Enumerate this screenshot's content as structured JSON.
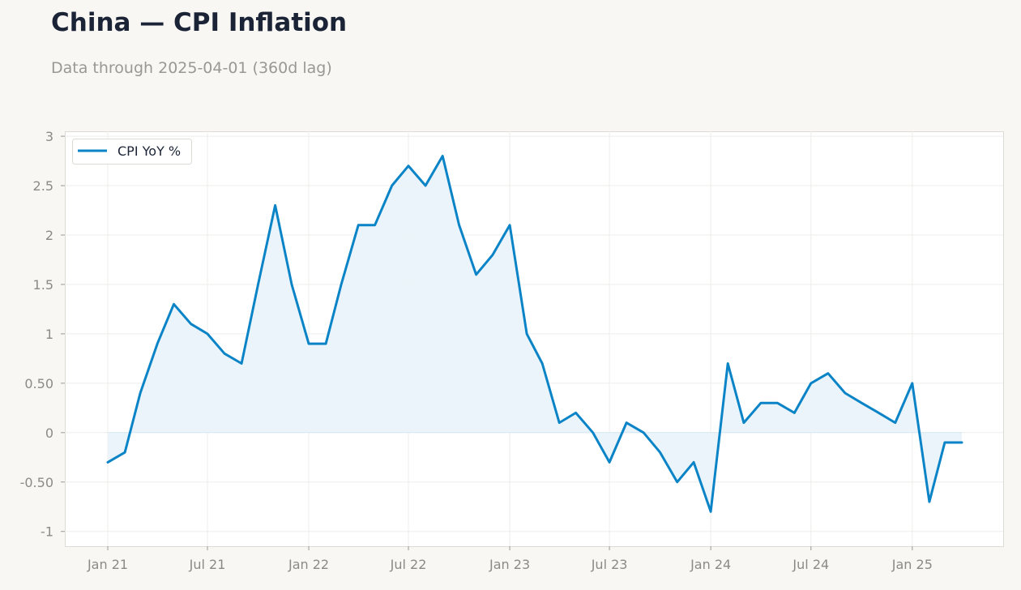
{
  "title": "China — CPI Inflation",
  "subtitle": "Data through 2025-04-01 (360d lag)",
  "colors": {
    "line": "#0a84c6",
    "fill": "#e9f3fa",
    "grid": "#ededeb",
    "frame": "#dddbd6",
    "background": "#ffffff"
  },
  "chart_data": {
    "type": "area",
    "legend": {
      "position": "top-left"
    },
    "grid": true,
    "xlim": [
      "2021-01-01",
      "2025-04-01"
    ],
    "ylim": [
      -1.15,
      3.05
    ],
    "x_ticks": [
      {
        "date": "2021-01-01",
        "label": "Jan 21"
      },
      {
        "date": "2021-07-01",
        "label": "Jul 21"
      },
      {
        "date": "2022-01-01",
        "label": "Jan 22"
      },
      {
        "date": "2022-07-01",
        "label": "Jul 22"
      },
      {
        "date": "2023-01-01",
        "label": "Jan 23"
      },
      {
        "date": "2023-07-01",
        "label": "Jul 23"
      },
      {
        "date": "2024-01-01",
        "label": "Jan 24"
      },
      {
        "date": "2024-07-01",
        "label": "Jul 24"
      },
      {
        "date": "2025-01-01",
        "label": "Jan 25"
      }
    ],
    "y_ticks": [
      {
        "value": 3,
        "label": "3"
      },
      {
        "value": 2.5,
        "label": "2.5"
      },
      {
        "value": 2,
        "label": "2"
      },
      {
        "value": 1.5,
        "label": "1.5"
      },
      {
        "value": 1,
        "label": "1"
      },
      {
        "value": 0.5,
        "label": "0.50"
      },
      {
        "value": 0,
        "label": "0"
      },
      {
        "value": -0.5,
        "label": "-0.50"
      },
      {
        "value": -1,
        "label": "-1"
      }
    ],
    "series": [
      {
        "name": "CPI YoY %",
        "points": [
          [
            "2021-01-01",
            -0.3
          ],
          [
            "2021-02-01",
            -0.2
          ],
          [
            "2021-03-01",
            0.4
          ],
          [
            "2021-04-01",
            0.9
          ],
          [
            "2021-05-01",
            1.3
          ],
          [
            "2021-06-01",
            1.1
          ],
          [
            "2021-07-01",
            1.0
          ],
          [
            "2021-08-01",
            0.8
          ],
          [
            "2021-09-01",
            0.7
          ],
          [
            "2021-10-01",
            1.5
          ],
          [
            "2021-11-01",
            2.3
          ],
          [
            "2021-12-01",
            1.5
          ],
          [
            "2022-01-01",
            0.9
          ],
          [
            "2022-02-01",
            0.9
          ],
          [
            "2022-03-01",
            1.5
          ],
          [
            "2022-04-01",
            2.1
          ],
          [
            "2022-05-01",
            2.1
          ],
          [
            "2022-06-01",
            2.5
          ],
          [
            "2022-07-01",
            2.7
          ],
          [
            "2022-08-01",
            2.5
          ],
          [
            "2022-09-01",
            2.8
          ],
          [
            "2022-10-01",
            2.1
          ],
          [
            "2022-11-01",
            1.6
          ],
          [
            "2022-12-01",
            1.8
          ],
          [
            "2023-01-01",
            2.1
          ],
          [
            "2023-02-01",
            1.0
          ],
          [
            "2023-03-01",
            0.7
          ],
          [
            "2023-04-01",
            0.1
          ],
          [
            "2023-05-01",
            0.2
          ],
          [
            "2023-06-01",
            0.0
          ],
          [
            "2023-07-01",
            -0.3
          ],
          [
            "2023-08-01",
            0.1
          ],
          [
            "2023-09-01",
            0.0
          ],
          [
            "2023-10-01",
            -0.2
          ],
          [
            "2023-11-01",
            -0.5
          ],
          [
            "2023-12-01",
            -0.3
          ],
          [
            "2024-01-01",
            -0.8
          ],
          [
            "2024-02-01",
            0.7
          ],
          [
            "2024-03-01",
            0.1
          ],
          [
            "2024-04-01",
            0.3
          ],
          [
            "2024-05-01",
            0.3
          ],
          [
            "2024-06-01",
            0.2
          ],
          [
            "2024-07-01",
            0.5
          ],
          [
            "2024-08-01",
            0.6
          ],
          [
            "2024-09-01",
            0.4
          ],
          [
            "2024-10-01",
            0.3
          ],
          [
            "2024-11-01",
            0.2
          ],
          [
            "2024-12-01",
            0.1
          ],
          [
            "2025-01-01",
            0.5
          ],
          [
            "2025-02-01",
            -0.7
          ],
          [
            "2025-03-01",
            -0.1
          ],
          [
            "2025-04-01",
            -0.1
          ]
        ]
      }
    ]
  }
}
